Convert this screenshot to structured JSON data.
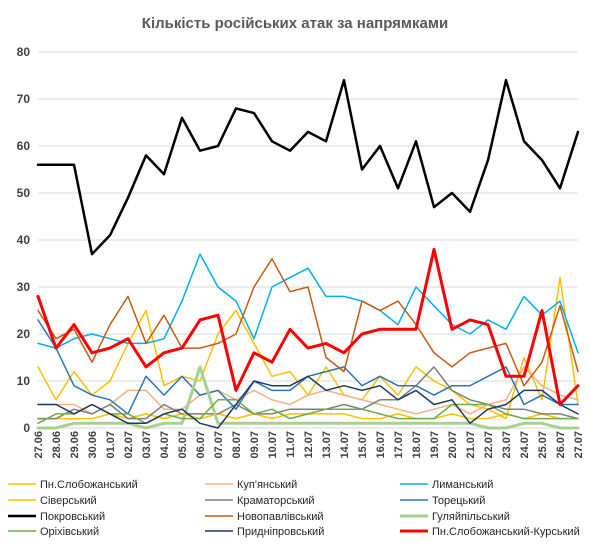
{
  "chart_data": {
    "type": "line",
    "title": "Кількість російських атак за напрямками",
    "xlabel": "",
    "ylabel": "",
    "ylim": [
      0,
      80
    ],
    "yticks": [
      0,
      10,
      20,
      30,
      40,
      50,
      60,
      70,
      80
    ],
    "grid": true,
    "legend_position": "bottom",
    "x": [
      "27.06",
      "28.06",
      "29.06",
      "30.06",
      "01.07",
      "02.07",
      "03.07",
      "04.07",
      "05.07",
      "06.07",
      "07.07",
      "08.07",
      "09.07",
      "10.07",
      "11.07",
      "12.07",
      "13.07",
      "14.07",
      "15.07",
      "16.07",
      "17.07",
      "18.07",
      "19.07",
      "20.07",
      "21.07",
      "22.07",
      "23.07",
      "24.07",
      "25.07",
      "26.07",
      "27.07"
    ],
    "series": [
      {
        "name": "Пн.Слобожанський",
        "color": "#ffc000",
        "width": 1.5,
        "values": [
          13,
          6,
          12,
          7,
          10,
          18,
          25,
          9,
          11,
          10,
          20,
          25,
          18,
          11,
          12,
          7,
          13,
          7,
          6,
          11,
          7,
          13,
          10,
          8,
          5,
          4,
          2,
          15,
          6,
          32,
          5
        ]
      },
      {
        "name": "Куп'янський",
        "color": "#f4b183",
        "width": 1.5,
        "values": [
          5,
          5,
          5,
          3,
          5,
          8,
          8,
          4,
          4,
          7,
          8,
          6,
          8,
          6,
          5,
          7,
          8,
          7,
          6,
          5,
          4,
          3,
          4,
          5,
          3,
          5,
          6,
          13,
          9,
          7,
          6
        ]
      },
      {
        "name": "Лиманський",
        "color": "#00b0f0",
        "width": 1.5,
        "values": [
          18,
          17,
          19,
          20,
          19,
          18,
          18,
          19,
          27,
          37,
          30,
          27,
          19,
          30,
          32,
          34,
          28,
          28,
          27,
          25,
          22,
          30,
          26,
          22,
          20,
          23,
          21,
          28,
          24,
          27,
          16
        ]
      },
      {
        "name": "Сіверський",
        "color": "#ffc000",
        "width": 1.5,
        "values": [
          2,
          2,
          2,
          2,
          3,
          2,
          3,
          2,
          3,
          2,
          3,
          2,
          3,
          2,
          3,
          3,
          3,
          3,
          2,
          2,
          3,
          2,
          2,
          3,
          2,
          2,
          3,
          2,
          3,
          2,
          2
        ]
      },
      {
        "name": "Краматорський",
        "color": "#7f7f7f",
        "width": 1.5,
        "values": [
          2,
          2,
          4,
          3,
          5,
          2,
          2,
          5,
          3,
          3,
          3,
          5,
          3,
          3,
          4,
          4,
          4,
          5,
          4,
          6,
          6,
          9,
          13,
          8,
          6,
          5,
          4,
          4,
          3,
          3,
          2
        ]
      },
      {
        "name": "Торецький",
        "color": "#2e75b6",
        "width": 1.5,
        "values": [
          23,
          17,
          9,
          7,
          6,
          3,
          11,
          7,
          11,
          7,
          8,
          4,
          10,
          8,
          8,
          11,
          12,
          13,
          9,
          11,
          9,
          9,
          7,
          9,
          9,
          11,
          13,
          5,
          7,
          5,
          5
        ]
      },
      {
        "name": "Покровський",
        "color": "#000000",
        "width": 2.5,
        "values": [
          56,
          56,
          56,
          37,
          41,
          49,
          58,
          54,
          66,
          59,
          60,
          68,
          67,
          61,
          59,
          63,
          61,
          74,
          55,
          60,
          51,
          61,
          47,
          50,
          46,
          57,
          74,
          61,
          57,
          51,
          63
        ]
      },
      {
        "name": "Новопавлівський",
        "color": "#c55a11",
        "width": 1.5,
        "values": [
          25,
          19,
          21,
          14,
          22,
          28,
          18,
          24,
          17,
          17,
          18,
          20,
          30,
          36,
          29,
          30,
          15,
          12,
          27,
          25,
          27,
          22,
          16,
          13,
          16,
          17,
          18,
          9,
          14,
          26,
          12
        ]
      },
      {
        "name": "Гуляйпільський",
        "color": "#a9d18e",
        "width": 3,
        "values": [
          0,
          0,
          1,
          1,
          1,
          1,
          0,
          1,
          1,
          13,
          1,
          1,
          1,
          1,
          1,
          1,
          1,
          1,
          1,
          1,
          1,
          1,
          1,
          1,
          1,
          0,
          0,
          1,
          1,
          0,
          0
        ]
      },
      {
        "name": "Оріхівський",
        "color": "#70ad47",
        "width": 1.5,
        "values": [
          1,
          3,
          3,
          5,
          3,
          3,
          1,
          3,
          2,
          2,
          6,
          6,
          3,
          4,
          2,
          3,
          4,
          4,
          4,
          3,
          2,
          2,
          2,
          5,
          5,
          5,
          3,
          2,
          2,
          2,
          2
        ]
      },
      {
        "name": "Придніпровський",
        "color": "#203864",
        "width": 1.5,
        "values": [
          5,
          5,
          3,
          5,
          3,
          1,
          1,
          3,
          4,
          1,
          0,
          5,
          10,
          9,
          9,
          11,
          8,
          9,
          8,
          9,
          6,
          8,
          5,
          6,
          1,
          4,
          5,
          8,
          8,
          5,
          3
        ]
      },
      {
        "name": "Пн.Слобожанський-Курський",
        "color": "#ff0000",
        "width": 3,
        "values": [
          28,
          17,
          22,
          16,
          17,
          19,
          13,
          16,
          17,
          23,
          24,
          8,
          16,
          14,
          21,
          17,
          18,
          16,
          20,
          21,
          21,
          21,
          38,
          21,
          23,
          22,
          11,
          11,
          25,
          5,
          9
        ]
      }
    ]
  }
}
